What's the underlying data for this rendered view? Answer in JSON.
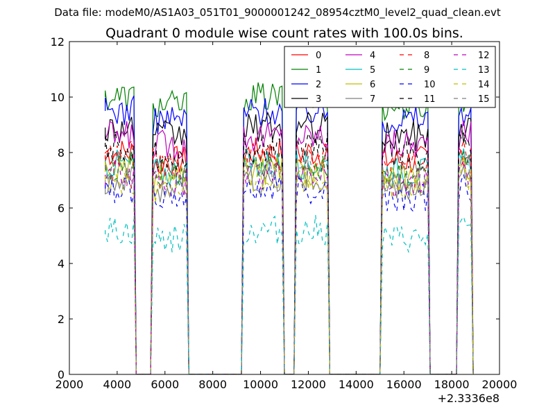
{
  "chart_data": {
    "type": "line",
    "supertitle": "Data file: modeM0/AS1A03_051T01_9000001242_08954cztM0_level2_quad_clean.evt",
    "title": "Quadrant 0 module wise count rates with 100.0s bins.",
    "xlabel": "",
    "ylabel": "",
    "xlim": [
      2000,
      20000
    ],
    "ylim": [
      0,
      12
    ],
    "x_offset_label": "+2.3336e8",
    "xticks": [
      2000,
      4000,
      6000,
      8000,
      10000,
      12000,
      14000,
      16000,
      18000,
      20000
    ],
    "yticks": [
      0,
      2,
      4,
      6,
      8,
      10,
      12
    ],
    "legend_position": "top-right",
    "legend_columns": 4,
    "segments": [
      {
        "start": 3500,
        "end": 4700
      },
      {
        "start": 5500,
        "end": 6900
      },
      {
        "start": 9300,
        "end": 10900
      },
      {
        "start": 11500,
        "end": 12800
      },
      {
        "start": 15100,
        "end": 17000
      },
      {
        "start": 18300,
        "end": 18800
      }
    ],
    "series": [
      {
        "name": "0",
        "color": "#ff0000",
        "dash": "solid",
        "level": 8.0
      },
      {
        "name": "1",
        "color": "#008000",
        "dash": "solid",
        "level": 10.0
      },
      {
        "name": "2",
        "color": "#0000ff",
        "dash": "solid",
        "level": 9.5
      },
      {
        "name": "3",
        "color": "#000000",
        "dash": "solid",
        "level": 8.9
      },
      {
        "name": "4",
        "color": "#bf00bf",
        "dash": "solid",
        "level": 8.6
      },
      {
        "name": "5",
        "color": "#00bfbf",
        "dash": "solid",
        "level": 7.6
      },
      {
        "name": "6",
        "color": "#bfbf00",
        "dash": "solid",
        "level": 7.3
      },
      {
        "name": "7",
        "color": "#808080",
        "dash": "solid",
        "level": 7.0
      },
      {
        "name": "8",
        "color": "#ff0000",
        "dash": "dashed",
        "level": 7.9
      },
      {
        "name": "9",
        "color": "#008000",
        "dash": "dashed",
        "level": 7.5
      },
      {
        "name": "10",
        "color": "#0000ff",
        "dash": "dashed",
        "level": 6.7
      },
      {
        "name": "11",
        "color": "#000000",
        "dash": "dashed",
        "level": 8.2
      },
      {
        "name": "12",
        "color": "#bf00bf",
        "dash": "dashed",
        "level": 7.2
      },
      {
        "name": "13",
        "color": "#00bfbf",
        "dash": "dashed",
        "level": 5.2
      },
      {
        "name": "14",
        "color": "#bfbf00",
        "dash": "dashed",
        "level": 7.0
      },
      {
        "name": "15",
        "color": "#808080",
        "dash": "dashed",
        "level": 7.4
      }
    ]
  }
}
